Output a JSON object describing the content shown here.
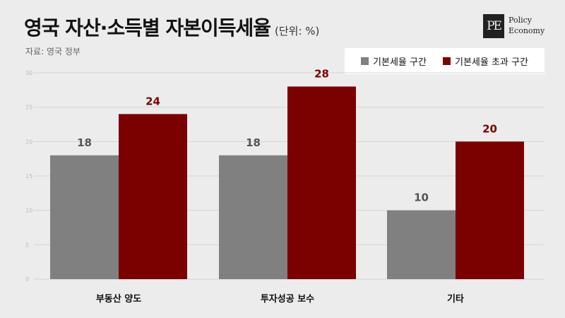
{
  "header": {
    "title": "영국 자산·소득별 자본이득세율",
    "unit": "(단위: %)",
    "source": "자료: 영국 정부",
    "logo_mark": "PE",
    "logo_line1": "Policy",
    "logo_line2": "Economy"
  },
  "chart_data": {
    "type": "bar",
    "title": "영국 자산·소득별 자본이득세율",
    "unit": "(단위: %)",
    "categories": [
      "부동산 양도",
      "투자성공 보수",
      "기타"
    ],
    "series": [
      {
        "name": "기본세율 구간",
        "values": [
          18,
          18,
          10
        ],
        "color": "#808080",
        "label_color": "#555555"
      },
      {
        "name": "기본세율 초과 구간",
        "values": [
          24,
          28,
          20
        ],
        "color": "#7b0000",
        "label_color": "#7b0000"
      }
    ],
    "ylim": [
      0,
      30
    ],
    "yticks": [
      0,
      5,
      10,
      15,
      20,
      25,
      30
    ],
    "grid": true,
    "legend_position": "top-right",
    "xlabel": "",
    "ylabel": ""
  }
}
